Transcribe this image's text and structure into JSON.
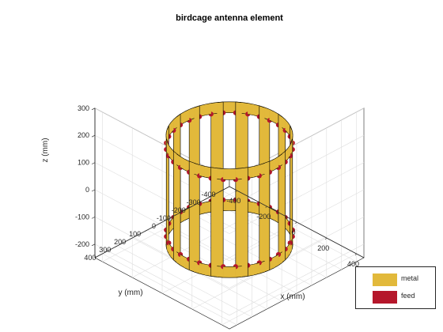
{
  "chart_data": {
    "type": "3d-surface",
    "title": "birdcage antenna element",
    "xlabel": "x (mm)",
    "ylabel": "y (mm)",
    "zlabel": "z (mm)",
    "x_ticks": [
      "-400",
      "-200",
      "0",
      "200",
      "400"
    ],
    "y_ticks": [
      "-400",
      "-300",
      "-200",
      "-100",
      "0",
      "100",
      "200",
      "300",
      "400"
    ],
    "z_ticks": [
      "-200",
      "-100",
      "0",
      "100",
      "200",
      "300"
    ],
    "xlim": [
      -450,
      450
    ],
    "ylim": [
      -450,
      450
    ],
    "zlim": [
      -250,
      300
    ],
    "grid": true,
    "legend_position": "bottom-right",
    "legend": [
      {
        "name": "metal",
        "color": "#e2b93b"
      },
      {
        "name": "feed",
        "color": "#b5172b"
      }
    ],
    "structure": {
      "radius": 300,
      "height": 400,
      "num_rungs": 16,
      "ring_height": 40
    }
  }
}
